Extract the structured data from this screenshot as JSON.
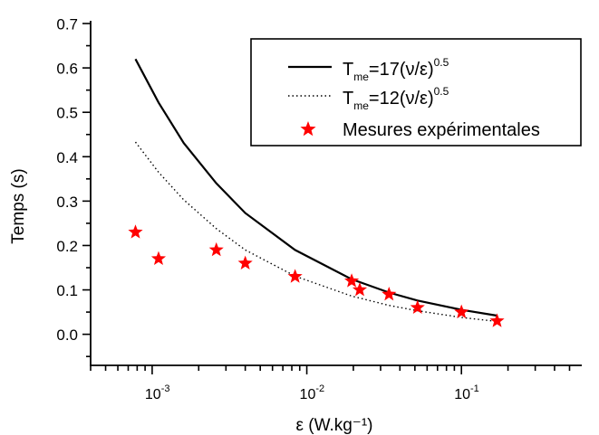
{
  "chart_data": {
    "type": "line",
    "x_scale": "log",
    "xlabel": "ε (W.kg⁻¹)",
    "ylabel": "Temps (s)",
    "xlim": [
      0.0004,
      0.6
    ],
    "ylim": [
      -0.07,
      0.7
    ],
    "y_ticks": [
      0.0,
      0.1,
      0.2,
      0.3,
      0.4,
      0.5,
      0.6,
      0.7
    ],
    "y_tick_labels": [
      "0.0",
      "0.1",
      "0.2",
      "0.3",
      "0.4",
      "0.5",
      "0.6",
      "0.7"
    ],
    "x_ticks": [
      {
        "value": 0.001,
        "base": "10",
        "exp": "-3"
      },
      {
        "value": 0.01,
        "base": "10",
        "exp": "-2"
      },
      {
        "value": 0.1,
        "base": "10",
        "exp": "-1"
      }
    ],
    "legend_position": "top-right",
    "series": [
      {
        "name": "T_me=17(ν/ε)^0.5",
        "name_parts": {
          "T": "T",
          "sub": "me",
          "mid": "=17(ν/ε)",
          "sup": "0.5"
        },
        "style": "solid",
        "color": "#000000",
        "x": [
          0.00078,
          0.0011,
          0.0016,
          0.0026,
          0.004,
          0.0084,
          0.0195,
          0.034,
          0.052,
          0.1,
          0.17
        ],
        "y": [
          0.62,
          0.522,
          0.431,
          0.34,
          0.273,
          0.19,
          0.124,
          0.094,
          0.076,
          0.055,
          0.042
        ]
      },
      {
        "name": "T_me=12(ν/ε)^0.5",
        "name_parts": {
          "T": "T",
          "sub": "me",
          "mid": "=12(ν/ε)",
          "sup": "0.5"
        },
        "style": "dotted",
        "color": "#000000",
        "x": [
          0.00078,
          0.0011,
          0.0016,
          0.0026,
          0.004,
          0.0084,
          0.0195,
          0.034,
          0.052,
          0.1,
          0.17
        ],
        "y": [
          0.433,
          0.365,
          0.303,
          0.238,
          0.19,
          0.131,
          0.086,
          0.065,
          0.053,
          0.038,
          0.029
        ]
      },
      {
        "name": "Mesures expérimentales",
        "style": "marker-star",
        "color": "#ff0000",
        "x": [
          0.00078,
          0.0011,
          0.0026,
          0.004,
          0.0084,
          0.0195,
          0.022,
          0.034,
          0.052,
          0.1,
          0.17
        ],
        "y": [
          0.23,
          0.17,
          0.19,
          0.16,
          0.13,
          0.12,
          0.1,
          0.09,
          0.06,
          0.05,
          0.03
        ]
      }
    ]
  }
}
